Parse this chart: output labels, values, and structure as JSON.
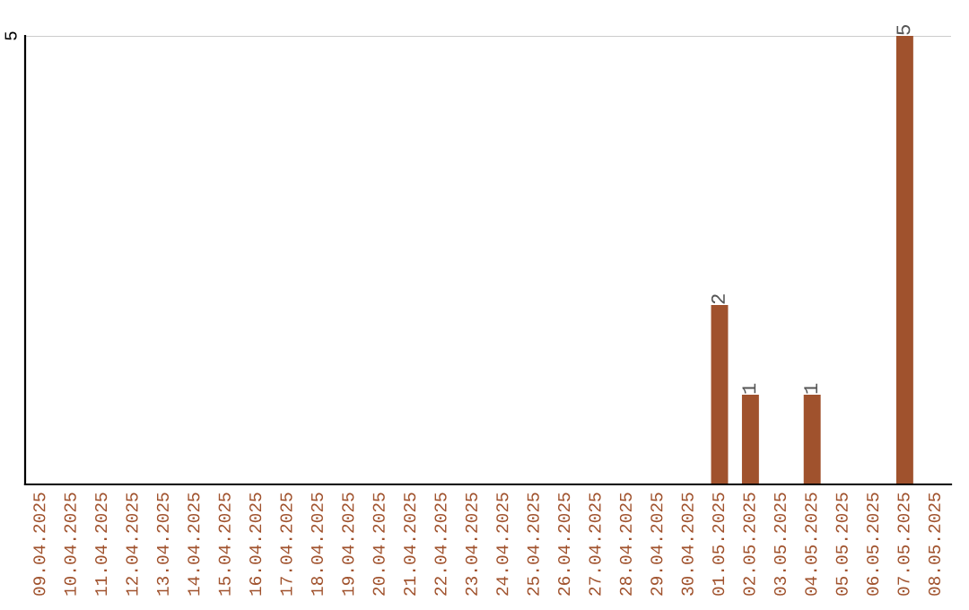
{
  "chart_data": {
    "type": "bar",
    "categories": [
      "09.04.2025",
      "10.04.2025",
      "11.04.2025",
      "12.04.2025",
      "13.04.2025",
      "14.04.2025",
      "15.04.2025",
      "16.04.2025",
      "17.04.2025",
      "18.04.2025",
      "19.04.2025",
      "20.04.2025",
      "21.04.2025",
      "22.04.2025",
      "23.04.2025",
      "24.04.2025",
      "25.04.2025",
      "26.04.2025",
      "27.04.2025",
      "28.04.2025",
      "29.04.2025",
      "30.04.2025",
      "01.05.2025",
      "02.05.2025",
      "03.05.2025",
      "04.05.2025",
      "05.05.2025",
      "06.05.2025",
      "07.05.2025",
      "08.05.2025"
    ],
    "values": [
      null,
      null,
      null,
      null,
      null,
      null,
      null,
      null,
      null,
      null,
      null,
      null,
      null,
      null,
      null,
      null,
      null,
      null,
      null,
      null,
      null,
      null,
      2,
      1,
      null,
      1,
      null,
      null,
      5,
      null
    ],
    "data_labels": true,
    "color": "#a0522d",
    "ref_lines": [
      {
        "axis": "y",
        "value": 5,
        "label": "5",
        "color": "#cccccc"
      }
    ]
  }
}
